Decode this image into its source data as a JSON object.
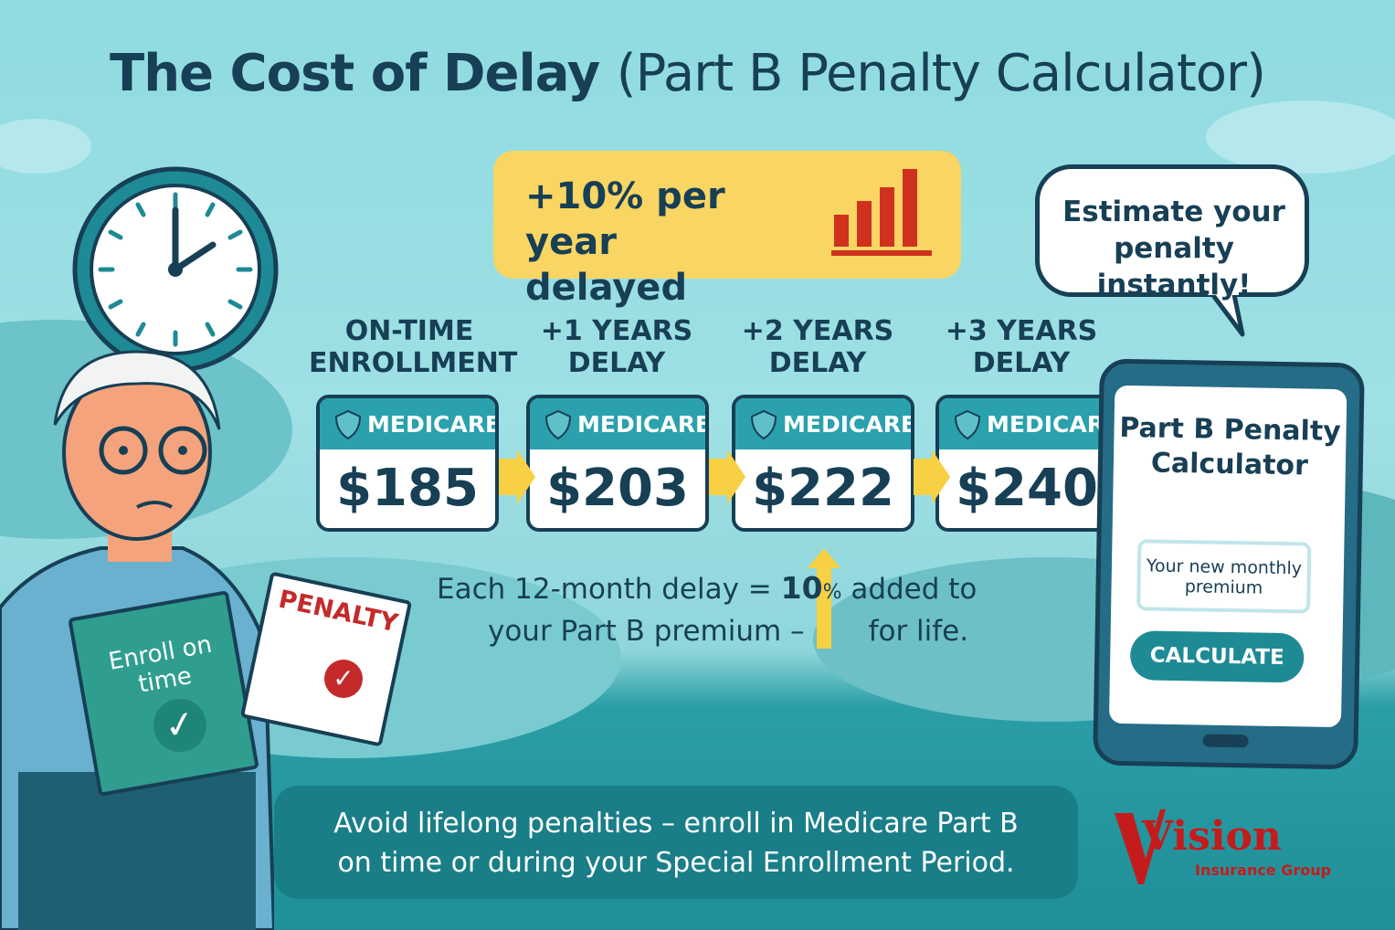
{
  "title": {
    "main": "The Cost of Delay",
    "paren": "(Part B Penalty Calculator)"
  },
  "rate": {
    "line1": "+10% per year",
    "line2": "delayed"
  },
  "bubble": {
    "text": "Estimate your penalty instantly!"
  },
  "columns": [
    {
      "label1": "ON-TIME",
      "label2": "ENROLLMENT",
      "brand": "MEDICARE",
      "price": "$185"
    },
    {
      "label1": "+1 YEARS",
      "label2": "DELAY",
      "brand": "MEDICARE",
      "price": "$203"
    },
    {
      "label1": "+2 YEARS",
      "label2": "DELAY",
      "brand": "MEDICARE",
      "price": "$222"
    },
    {
      "label1": "+3 YEARS",
      "label2": "DELAY",
      "brand": "MEDICARE",
      "price": "$240"
    }
  ],
  "explanation": {
    "line1a": "Each 12-month delay = ",
    "pct": "10",
    "sym": "%",
    "line1b": " added to",
    "line2a": "your Part B premium –",
    "line2b": "for life."
  },
  "calculator": {
    "title": "Part B Penalty Calculator",
    "premium_label": "Your new monthly premium",
    "button": "CALCULATE"
  },
  "documents": {
    "enroll": "Enroll on time",
    "penalty": "PENALTY"
  },
  "footer": {
    "line1": "Avoid lifelong penalties – enroll in Medicare Part B",
    "line2": "on time or during your Special Enrollment Period."
  },
  "logo": {
    "name": "Vision",
    "sub": "Insurance Group"
  },
  "colors": {
    "navy": "#173f55",
    "teal": "#2aa1ad",
    "yellow": "#f9d563",
    "red": "#c41c1c"
  }
}
